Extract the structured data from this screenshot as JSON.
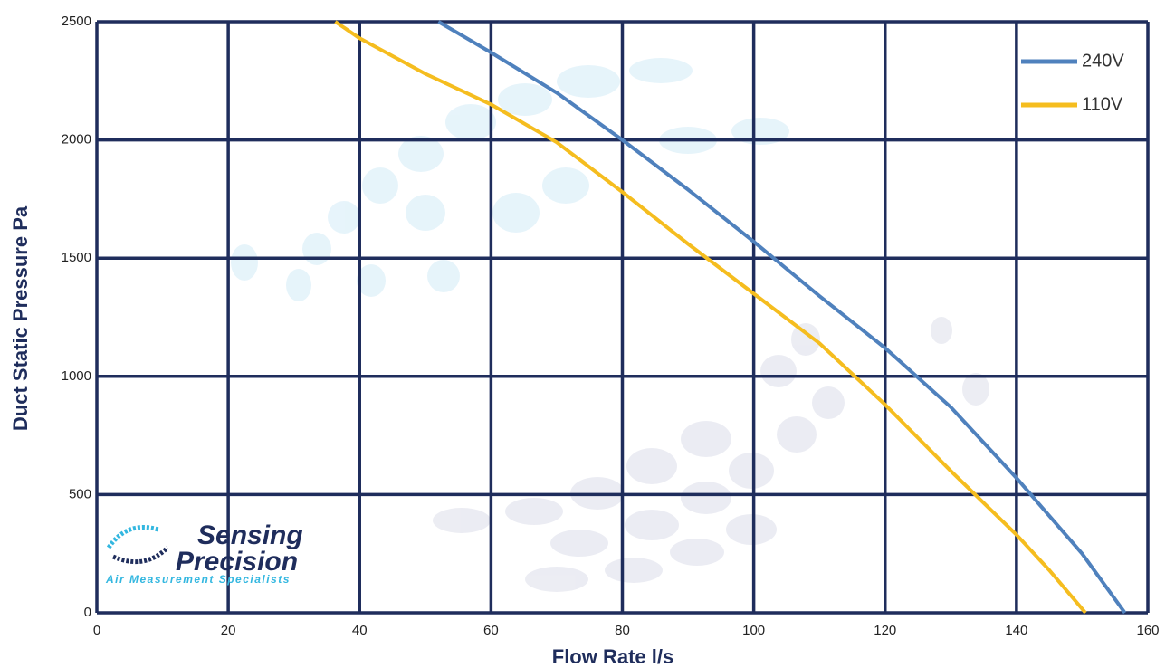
{
  "chart_data": {
    "type": "line",
    "xlabel": "Flow Rate l/s",
    "ylabel": "Duct Static Pressure Pa",
    "xlim": [
      0,
      160
    ],
    "xticks": [
      0,
      20,
      40,
      60,
      80,
      100,
      120,
      140,
      160
    ],
    "ylim": [
      0,
      2500
    ],
    "yticks": [
      0,
      500,
      1000,
      1500,
      2000,
      2500
    ],
    "grid": true,
    "legend": "top-right",
    "series": [
      {
        "name": "240V",
        "color": "#4f81bd",
        "x": [
          52,
          60,
          70,
          80,
          90,
          100,
          110,
          120,
          130,
          140,
          150,
          156.5
        ],
        "values": [
          2500,
          2370,
          2200,
          2000,
          1790,
          1570,
          1340,
          1120,
          870,
          570,
          250,
          0
        ]
      },
      {
        "name": "110V",
        "color": "#f5bd1f",
        "x": [
          36.3,
          40,
          50,
          60,
          70,
          80,
          90,
          100,
          110,
          120,
          130,
          140,
          145,
          150.5
        ],
        "values": [
          2500,
          2430,
          2280,
          2150,
          1990,
          1780,
          1560,
          1350,
          1140,
          880,
          600,
          330,
          180,
          0
        ]
      }
    ]
  },
  "logo": {
    "line1": "Sensing",
    "line2": "Precision",
    "tagline": "Air Measurement Specialists"
  }
}
